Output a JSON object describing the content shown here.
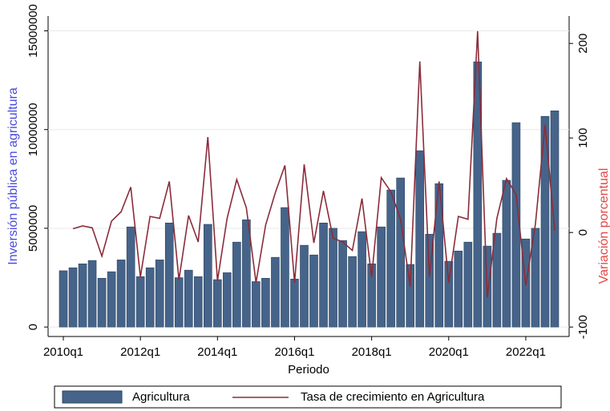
{
  "chart_data": {
    "type": "bar",
    "x_label": "Periodo",
    "y_label": "Inversión pública en agricultura",
    "y2_label": "Variación porcentual",
    "categories": [
      "2010q1",
      null,
      null,
      null,
      null,
      null,
      null,
      null,
      "2012q1",
      null,
      null,
      null,
      null,
      null,
      null,
      null,
      "2014q1",
      null,
      null,
      null,
      null,
      null,
      null,
      null,
      "2016q1",
      null,
      null,
      null,
      null,
      null,
      null,
      null,
      "2018q1",
      null,
      null,
      null,
      null,
      null,
      null,
      null,
      "2020q1",
      null,
      null,
      null,
      null,
      null,
      null,
      null,
      "2022q1",
      null,
      null,
      null
    ],
    "series": [
      {
        "name": "Agricultura",
        "type": "bar",
        "color": "#46648a",
        "values": [
          2850000,
          3000000,
          3200000,
          3370000,
          2470000,
          2800000,
          3400000,
          5070000,
          2550000,
          3000000,
          3400000,
          5270000,
          2500000,
          2880000,
          2550000,
          5200000,
          2400000,
          2750000,
          4300000,
          5430000,
          2300000,
          2470000,
          3530000,
          6050000,
          2430000,
          4140000,
          3650000,
          5270000,
          5000000,
          4380000,
          3570000,
          4830000,
          3200000,
          5070000,
          6940000,
          7550000,
          3170000,
          8930000,
          4700000,
          7260000,
          3330000,
          3850000,
          4300000,
          13430000,
          4100000,
          4750000,
          7430000,
          10350000,
          4460000,
          5000000,
          10670000,
          10950000
        ]
      },
      {
        "name": "Tasa de crecimiento en Agricultura",
        "type": "line",
        "axis": "y2",
        "color": "#8b2c3a",
        "values": [
          null,
          4,
          7,
          5,
          -25,
          12,
          22,
          48,
          -47,
          17,
          15,
          54,
          -50,
          18,
          -10,
          101,
          -51,
          15,
          56,
          26,
          -53,
          8,
          42,
          71,
          -53,
          72,
          -11,
          44,
          -6,
          -10,
          -19,
          36,
          -47,
          58,
          43,
          14,
          -57,
          181,
          -47,
          54,
          -53,
          17,
          14,
          213,
          -69,
          15,
          57,
          40,
          -56,
          9,
          114,
          2
        ]
      }
    ],
    "ylim": [
      -480000,
      15750000
    ],
    "yticks": [
      0,
      5000000,
      10000000,
      15000000
    ],
    "y2lim": [
      -110,
      229
    ],
    "y2ticks": [
      -100,
      0,
      100,
      200
    ],
    "grid": true,
    "legend": "bottom"
  }
}
